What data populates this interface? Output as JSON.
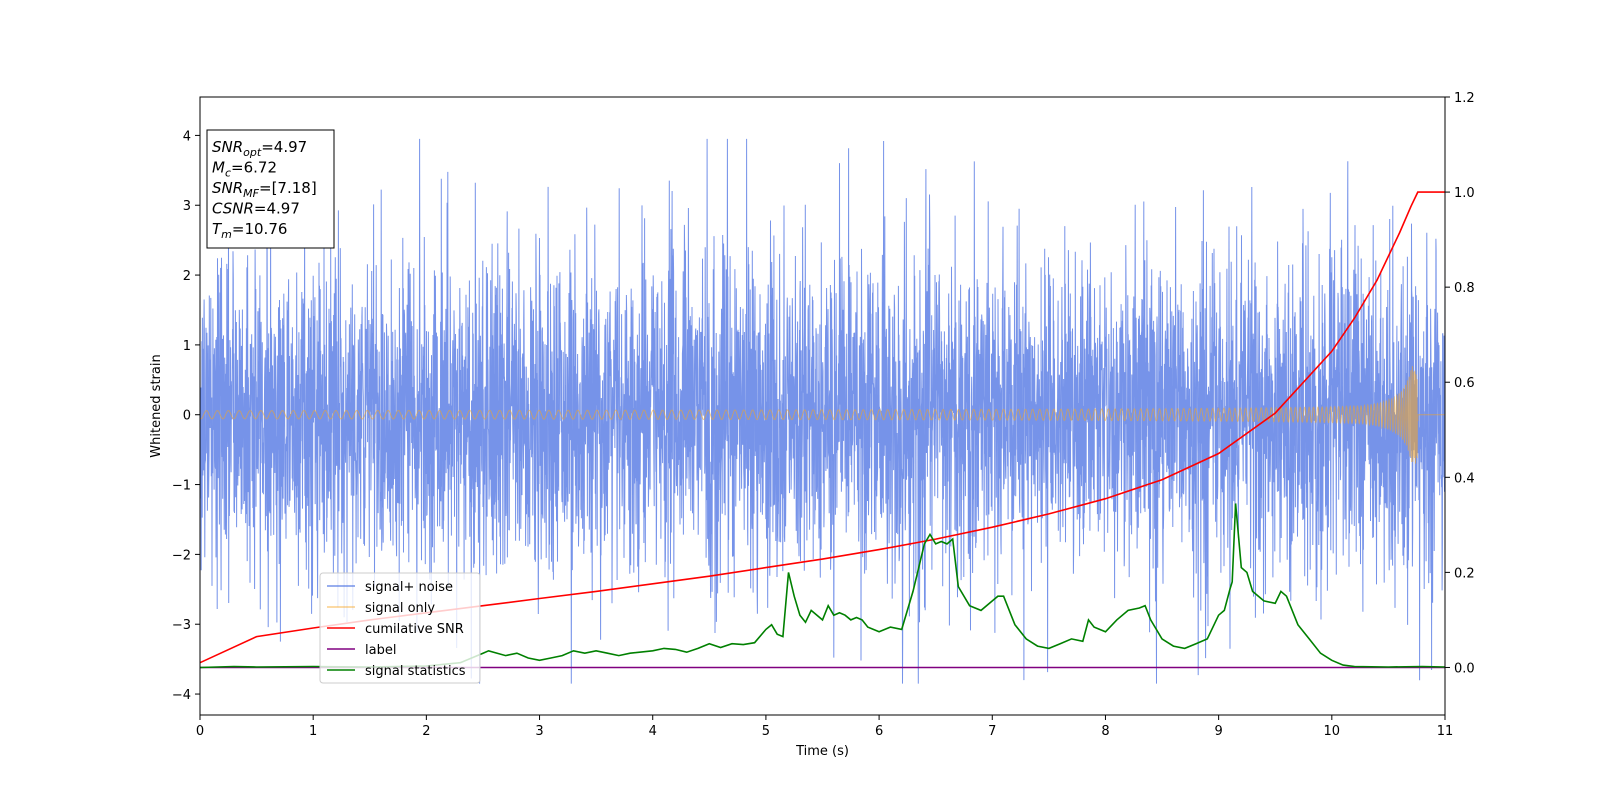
{
  "chart_data": {
    "type": "line",
    "xlabel": "Time (s)",
    "ylabel": "Whitened strain",
    "xlim": [
      0,
      11
    ],
    "ylim_left": [
      -4.3,
      4.55
    ],
    "ylim_right": [
      -0.1,
      1.2
    ],
    "x_ticks": [
      "0",
      "1",
      "2",
      "3",
      "4",
      "5",
      "6",
      "7",
      "8",
      "9",
      "10",
      "11"
    ],
    "y_ticks_left": [
      "−4",
      "−3",
      "−2",
      "−1",
      "0",
      "1",
      "2",
      "3",
      "4"
    ],
    "y_ticks_right": [
      "0.0",
      "0.2",
      "0.4",
      "0.6",
      "0.8",
      "1.0",
      "1.2"
    ],
    "grid": false,
    "legend_position": "lower-left",
    "info_box": [
      {
        "var": "SNR",
        "sub": "opt",
        "value": "=4.97"
      },
      {
        "var": "M",
        "sub": "c",
        "value": "=6.72"
      },
      {
        "var": "SNR",
        "sub": "MF",
        "value": "=[7.18]"
      },
      {
        "var": "CSNR",
        "sub": "",
        "value": "=4.97"
      },
      {
        "var": "T",
        "sub": "m",
        "value": "=10.76"
      }
    ],
    "series": [
      {
        "name": "signal+ noise",
        "color": "#4169e1",
        "axis": "left",
        "kind": "noise",
        "noise_std": 1.15,
        "spike_peaks": [
          [
            1.94,
            3.98
          ],
          [
            2.47,
            -4.0
          ],
          [
            3.28,
            -3.88
          ],
          [
            4.48,
            4.1
          ],
          [
            4.66,
            4.0
          ],
          [
            4.83,
            4.17
          ],
          [
            6.04,
            3.92
          ],
          [
            7.28,
            -3.8
          ],
          [
            8.45,
            -3.88
          ],
          [
            9.1,
            -3.35
          ]
        ]
      },
      {
        "name": "signal only",
        "color": "#f5a623",
        "axis": "left",
        "kind": "chirp",
        "merger_time": 10.76,
        "peak_amplitude": 0.7
      },
      {
        "name": "cumilative SNR",
        "color": "#ff0000",
        "axis": "right",
        "x": [
          0,
          0.5,
          1,
          1.5,
          2,
          2.5,
          3,
          3.5,
          4,
          4.5,
          5,
          5.5,
          6,
          6.5,
          7,
          7.5,
          8,
          8.5,
          9,
          9.5,
          10,
          10.2,
          10.4,
          10.6,
          10.7,
          10.76,
          11
        ],
        "values": [
          0.01,
          0.065,
          0.083,
          0.1,
          0.115,
          0.13,
          0.145,
          0.16,
          0.176,
          0.192,
          0.21,
          0.228,
          0.248,
          0.27,
          0.295,
          0.323,
          0.355,
          0.395,
          0.45,
          0.535,
          0.665,
          0.735,
          0.815,
          0.915,
          0.97,
          1.0,
          1.0
        ]
      },
      {
        "name": "label",
        "color": "#800080",
        "axis": "right",
        "x": [
          0,
          11
        ],
        "values": [
          0,
          0
        ]
      },
      {
        "name": "signal statistics",
        "color": "#008000",
        "axis": "right",
        "x": [
          0,
          0.3,
          0.5,
          1,
          1.5,
          2,
          2.3,
          2.5,
          2.55,
          2.7,
          2.8,
          2.9,
          3.0,
          3.1,
          3.2,
          3.3,
          3.4,
          3.5,
          3.6,
          3.7,
          3.8,
          4.0,
          4.1,
          4.2,
          4.3,
          4.4,
          4.5,
          4.6,
          4.7,
          4.8,
          4.9,
          5.0,
          5.05,
          5.1,
          5.15,
          5.2,
          5.25,
          5.3,
          5.35,
          5.4,
          5.5,
          5.55,
          5.6,
          5.65,
          5.7,
          5.75,
          5.8,
          5.85,
          5.9,
          6.0,
          6.1,
          6.2,
          6.3,
          6.4,
          6.45,
          6.5,
          6.55,
          6.6,
          6.65,
          6.7,
          6.8,
          6.9,
          7.0,
          7.05,
          7.1,
          7.2,
          7.3,
          7.4,
          7.5,
          7.6,
          7.7,
          7.8,
          7.85,
          7.9,
          8.0,
          8.1,
          8.2,
          8.3,
          8.35,
          8.4,
          8.5,
          8.6,
          8.7,
          8.8,
          8.9,
          9.0,
          9.05,
          9.1,
          9.12,
          9.15,
          9.2,
          9.25,
          9.3,
          9.4,
          9.5,
          9.55,
          9.6,
          9.7,
          9.8,
          9.9,
          10.0,
          10.1,
          10.2,
          10.5,
          10.8,
          11
        ],
        "values": [
          0,
          0.002,
          0.001,
          0.002,
          0.001,
          0.003,
          0.01,
          0.03,
          0.035,
          0.025,
          0.03,
          0.02,
          0.015,
          0.02,
          0.025,
          0.035,
          0.03,
          0.035,
          0.03,
          0.025,
          0.03,
          0.035,
          0.04,
          0.038,
          0.032,
          0.04,
          0.05,
          0.042,
          0.05,
          0.048,
          0.052,
          0.08,
          0.09,
          0.07,
          0.065,
          0.2,
          0.15,
          0.11,
          0.095,
          0.12,
          0.1,
          0.13,
          0.11,
          0.115,
          0.11,
          0.1,
          0.105,
          0.1,
          0.085,
          0.075,
          0.085,
          0.08,
          0.16,
          0.26,
          0.28,
          0.26,
          0.265,
          0.26,
          0.27,
          0.17,
          0.13,
          0.12,
          0.14,
          0.15,
          0.15,
          0.09,
          0.06,
          0.045,
          0.04,
          0.05,
          0.06,
          0.055,
          0.1,
          0.085,
          0.075,
          0.1,
          0.12,
          0.125,
          0.13,
          0.1,
          0.06,
          0.045,
          0.04,
          0.05,
          0.06,
          0.11,
          0.12,
          0.165,
          0.18,
          0.345,
          0.21,
          0.2,
          0.16,
          0.14,
          0.135,
          0.16,
          0.15,
          0.09,
          0.06,
          0.03,
          0.015,
          0.005,
          0.002,
          0.001,
          0.002,
          0.001
        ]
      }
    ]
  }
}
